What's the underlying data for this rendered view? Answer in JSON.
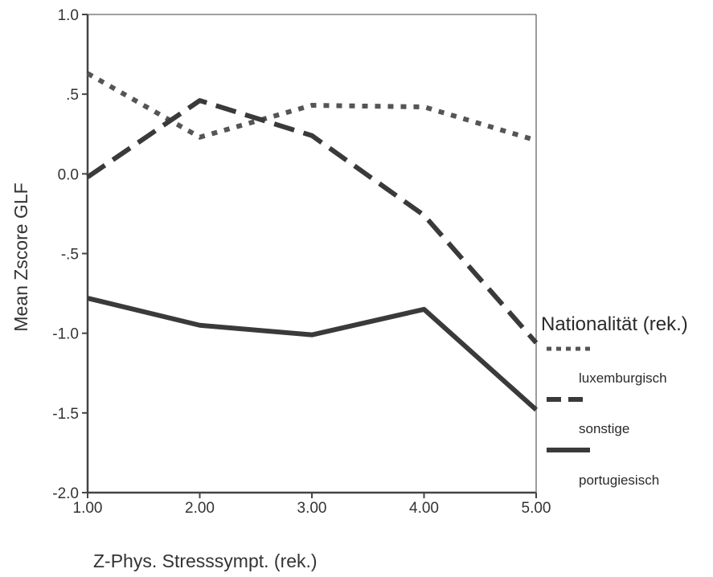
{
  "chart_data": {
    "type": "line",
    "xlabel": "Z-Phys. Stresssympt. (rek.)",
    "ylabel": "Mean Zscore GLF",
    "x": [
      1,
      2,
      3,
      4,
      5
    ],
    "x_tick_labels": [
      "1.00",
      "2.00",
      "3.00",
      "4.00",
      "5.00"
    ],
    "xlim": [
      1,
      5
    ],
    "ylim": [
      -2,
      1
    ],
    "y_ticks": [
      1,
      0.5,
      0,
      -0.5,
      -1,
      -1.5,
      -2
    ],
    "y_tick_labels": [
      "1.0",
      ".5",
      "0.0",
      "-.5",
      "-1.0",
      "-1.5",
      "-2.0"
    ],
    "grid": false,
    "legend": {
      "title": "Nationalität (rek.)",
      "placement": "right"
    },
    "series": [
      {
        "name": "luxemburgisch",
        "style": "dotted",
        "color": "#555555",
        "values": [
          0.63,
          0.23,
          0.43,
          0.42,
          0.21
        ]
      },
      {
        "name": "sonstige",
        "style": "dashed",
        "color": "#3a3a3a",
        "values": [
          -0.02,
          0.46,
          0.24,
          -0.26,
          -1.06
        ]
      },
      {
        "name": "portugiesisch",
        "style": "solid",
        "color": "#3a3a3a",
        "values": [
          -0.78,
          -0.95,
          -1.01,
          -0.85,
          -1.48
        ]
      }
    ]
  }
}
